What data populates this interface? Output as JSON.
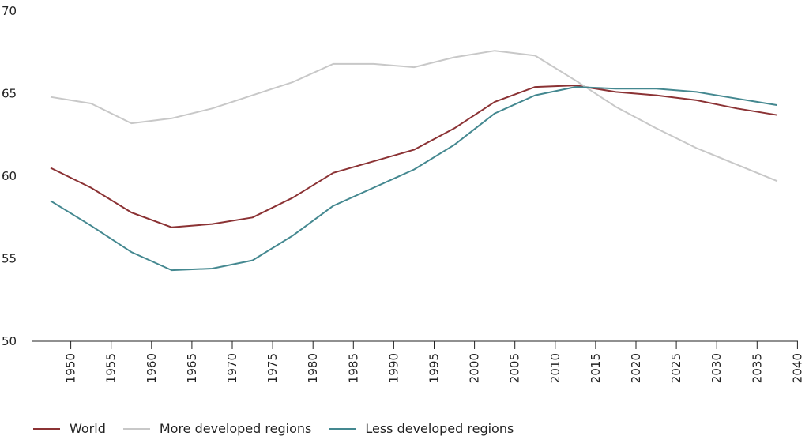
{
  "chart_data": {
    "type": "line",
    "title": "",
    "xlabel": "",
    "ylabel": "",
    "ylim": [
      50,
      70
    ],
    "xlim": [
      1945,
      2040
    ],
    "y_ticks": [
      "50",
      "55",
      "60",
      "65",
      "70"
    ],
    "x_ticks": [
      "1950",
      "1955",
      "1960",
      "1965",
      "1970",
      "1975",
      "1980",
      "1985",
      "1990",
      "1995",
      "2000",
      "2005",
      "2010",
      "2015",
      "2020",
      "2025",
      "2030",
      "2035",
      "2040"
    ],
    "grid": false,
    "legend_position": "bottom-left",
    "x": [
      1947.5,
      1952.5,
      1957.5,
      1962.5,
      1967.5,
      1972.5,
      1977.5,
      1982.5,
      1987.5,
      1992.5,
      1997.5,
      2002.5,
      2007.5,
      2012.5,
      2017.5,
      2022.5,
      2027.5,
      2032.5,
      2037.5
    ],
    "series": [
      {
        "name": "World",
        "color": "#8b3234",
        "values": [
          60.5,
          59.3,
          57.8,
          56.9,
          57.1,
          57.5,
          58.7,
          60.2,
          60.9,
          61.6,
          62.9,
          64.5,
          65.4,
          65.5,
          65.1,
          64.9,
          64.6,
          64.1,
          63.7
        ]
      },
      {
        "name": "More developed regions",
        "color": "#c8c8c8",
        "values": [
          64.8,
          64.4,
          63.2,
          63.5,
          64.1,
          64.9,
          65.7,
          66.8,
          66.8,
          66.6,
          67.2,
          67.6,
          67.3,
          65.8,
          64.2,
          62.9,
          61.7,
          60.7,
          59.7
        ]
      },
      {
        "name": "Less developed regions",
        "color": "#448890",
        "values": [
          58.5,
          57.0,
          55.4,
          54.3,
          54.4,
          54.9,
          56.4,
          58.2,
          59.3,
          60.4,
          61.9,
          63.8,
          64.9,
          65.4,
          65.3,
          65.3,
          65.1,
          64.7,
          64.3
        ]
      }
    ]
  }
}
